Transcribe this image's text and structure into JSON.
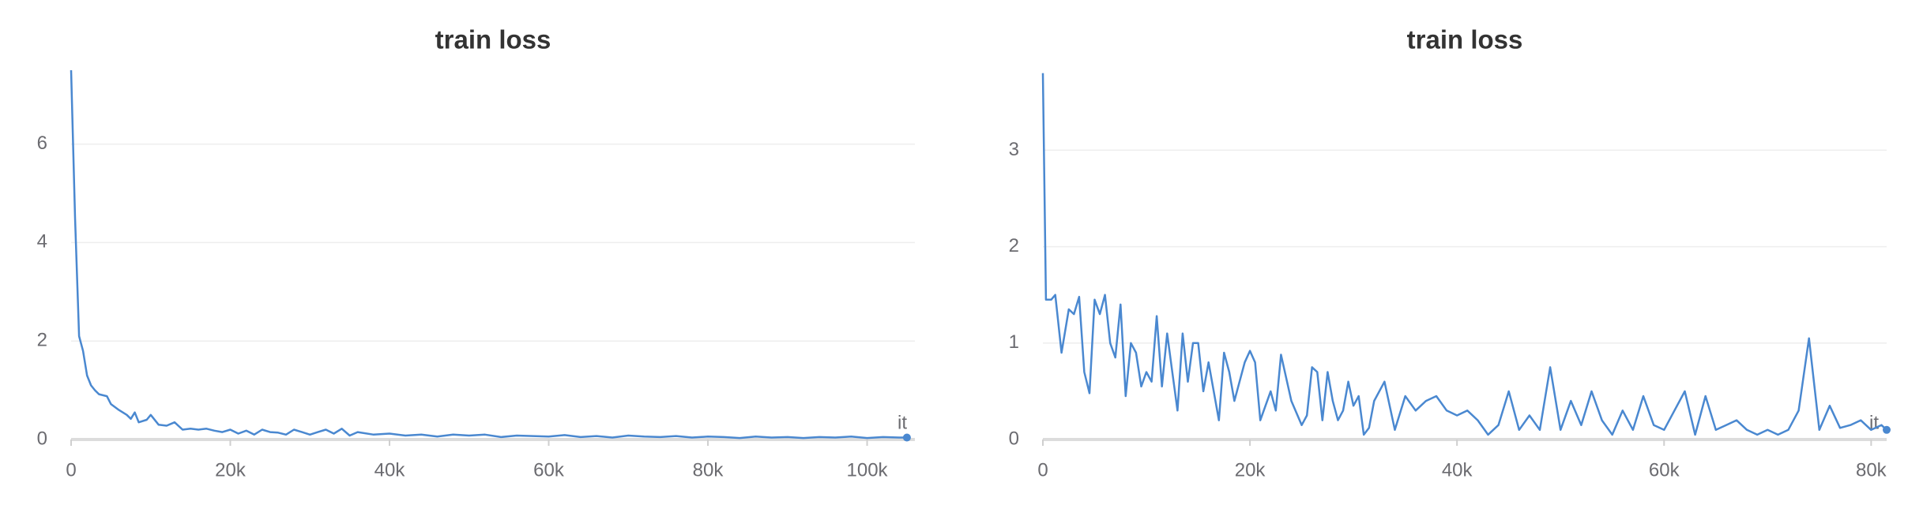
{
  "chart_data": [
    {
      "type": "line",
      "title": "train loss",
      "xlabel": "it",
      "x": [
        0,
        500,
        1000,
        1500,
        2000,
        2500,
        3000,
        3500,
        4500,
        5000,
        6000,
        7000,
        7500,
        8000,
        8500,
        9500,
        10000,
        11000,
        12000,
        13000,
        14000,
        15000,
        16000,
        17000,
        18000,
        19000,
        20000,
        21000,
        22000,
        23000,
        24000,
        25000,
        26000,
        27000,
        28000,
        29000,
        30000,
        31000,
        32000,
        33000,
        34000,
        35000,
        36000,
        38000,
        40000,
        42000,
        44000,
        46000,
        48000,
        50000,
        52000,
        54000,
        56000,
        58000,
        60000,
        62000,
        64000,
        66000,
        68000,
        70000,
        72000,
        74000,
        76000,
        78000,
        80000,
        82000,
        84000,
        86000,
        88000,
        90000,
        92000,
        94000,
        96000,
        98000,
        100000,
        102000,
        104000,
        105000
      ],
      "series": [
        {
          "color": "#4a88d0",
          "values": [
            7.5,
            4.5,
            2.1,
            1.8,
            1.3,
            1.1,
            1.0,
            0.92,
            0.88,
            0.72,
            0.6,
            0.5,
            0.42,
            0.55,
            0.35,
            0.4,
            0.5,
            0.3,
            0.28,
            0.35,
            0.2,
            0.22,
            0.2,
            0.22,
            0.18,
            0.15,
            0.2,
            0.12,
            0.18,
            0.1,
            0.2,
            0.15,
            0.14,
            0.1,
            0.2,
            0.15,
            0.1,
            0.15,
            0.2,
            0.12,
            0.22,
            0.08,
            0.15,
            0.1,
            0.12,
            0.08,
            0.1,
            0.06,
            0.1,
            0.08,
            0.1,
            0.05,
            0.08,
            0.07,
            0.06,
            0.09,
            0.05,
            0.07,
            0.04,
            0.08,
            0.06,
            0.05,
            0.07,
            0.04,
            0.06,
            0.05,
            0.03,
            0.06,
            0.04,
            0.05,
            0.03,
            0.05,
            0.04,
            0.06,
            0.03,
            0.05,
            0.04,
            0.04
          ]
        }
      ],
      "xlim": [
        0,
        106000
      ],
      "ylim": [
        0,
        7.5
      ],
      "xticks": [
        0,
        {
          "value": 20000,
          "label": "20k"
        },
        {
          "value": 40000,
          "label": "40k"
        },
        {
          "value": 60000,
          "label": "60k"
        },
        {
          "value": 80000,
          "label": "80k"
        },
        {
          "value": 100000,
          "label": "100k"
        }
      ],
      "yticks": [
        0,
        2,
        4,
        6
      ],
      "grid": true
    },
    {
      "type": "line",
      "title": "train loss",
      "xlabel": "it",
      "x": [
        0,
        300,
        800,
        1200,
        1800,
        2500,
        3000,
        3500,
        4000,
        4500,
        5000,
        5500,
        6000,
        6500,
        7000,
        7500,
        8000,
        8500,
        9000,
        9500,
        10000,
        10500,
        11000,
        11500,
        12000,
        12500,
        13000,
        13500,
        14000,
        14500,
        15000,
        15500,
        16000,
        17000,
        17500,
        18000,
        18500,
        19500,
        20000,
        20500,
        21000,
        22000,
        22500,
        23000,
        24000,
        25000,
        25500,
        26000,
        26500,
        27000,
        27500,
        28000,
        28500,
        29000,
        29500,
        30000,
        30500,
        31000,
        31500,
        32000,
        33000,
        34000,
        35000,
        36000,
        37000,
        38000,
        39000,
        40000,
        41000,
        42000,
        43000,
        44000,
        45000,
        46000,
        47000,
        48000,
        49000,
        50000,
        51000,
        52000,
        53000,
        54000,
        55000,
        56000,
        57000,
        58000,
        59000,
        60000,
        61000,
        62000,
        63000,
        64000,
        65000,
        66000,
        67000,
        68000,
        69000,
        70000,
        71000,
        72000,
        73000,
        74000,
        75000,
        76000,
        77000,
        78000,
        79000,
        80000,
        81000,
        81500
      ],
      "series": [
        {
          "color": "#4a88d0",
          "values": [
            3.8,
            1.45,
            1.45,
            1.5,
            0.9,
            1.35,
            1.3,
            1.48,
            0.7,
            0.48,
            1.45,
            1.3,
            1.5,
            1.0,
            0.85,
            1.4,
            0.45,
            1.0,
            0.9,
            0.55,
            0.7,
            0.6,
            1.28,
            0.55,
            1.1,
            0.7,
            0.3,
            1.1,
            0.6,
            1.0,
            1.0,
            0.5,
            0.8,
            0.2,
            0.9,
            0.7,
            0.4,
            0.8,
            0.92,
            0.8,
            0.2,
            0.5,
            0.3,
            0.88,
            0.4,
            0.15,
            0.25,
            0.75,
            0.7,
            0.2,
            0.7,
            0.4,
            0.2,
            0.3,
            0.6,
            0.35,
            0.45,
            0.05,
            0.12,
            0.4,
            0.6,
            0.1,
            0.45,
            0.3,
            0.4,
            0.45,
            0.3,
            0.25,
            0.3,
            0.2,
            0.05,
            0.15,
            0.5,
            0.1,
            0.25,
            0.1,
            0.75,
            0.1,
            0.4,
            0.15,
            0.5,
            0.2,
            0.05,
            0.3,
            0.1,
            0.45,
            0.15,
            0.1,
            0.3,
            0.5,
            0.05,
            0.45,
            0.1,
            0.15,
            0.2,
            0.1,
            0.05,
            0.1,
            0.05,
            0.1,
            0.3,
            1.05,
            0.1,
            0.35,
            0.12,
            0.15,
            0.2,
            0.1,
            0.15,
            0.1
          ]
        }
      ],
      "xlim": [
        0,
        81500
      ],
      "ylim": [
        0,
        3.83
      ],
      "xticks": [
        0,
        {
          "value": 20000,
          "label": "20k"
        },
        {
          "value": 40000,
          "label": "40k"
        },
        {
          "value": 60000,
          "label": "60k"
        },
        {
          "value": 80000,
          "label": "80k"
        }
      ],
      "yticks": [
        0,
        1,
        2,
        3
      ],
      "grid": true
    }
  ]
}
